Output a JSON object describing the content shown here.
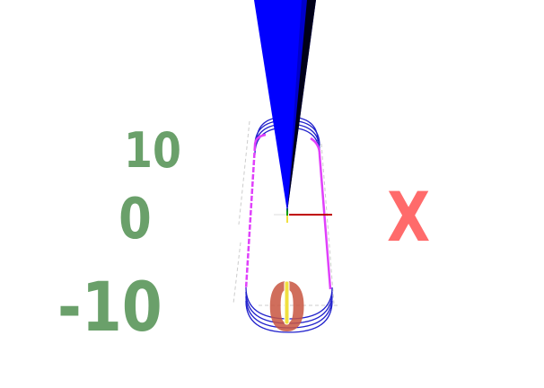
{
  "scene": {
    "y_axis_labels": [
      "10",
      "0",
      "-10"
    ],
    "x_axis_letter": "X",
    "origin_label": "0"
  },
  "colors": {
    "label_green": "#6aa06a",
    "letter_red": "#ff6b6b",
    "origin_label_red": "#c8553f",
    "tool_blue": "#0000ff",
    "tool_shadow": "#000000",
    "loop_blue": "#2222cc",
    "path_magenta": "#e040fb",
    "axis_x_red": "#c00000",
    "axis_y_green": "#00a000",
    "axis_z_yellow": "#f0e040",
    "ghost_gray": "#cccccc"
  },
  "icons": {
    "tool": "cone-tool-icon",
    "origin": "origin-axes-icon"
  }
}
